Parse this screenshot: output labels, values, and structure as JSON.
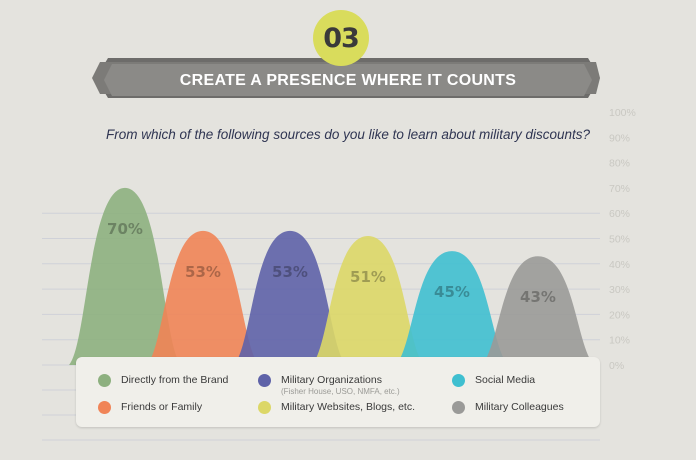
{
  "badge": {
    "text": "03"
  },
  "banner": {
    "title": "CREATE A PRESENCE WHERE IT COUNTS"
  },
  "question": "From which of the following sources do you like to learn about military discounts?",
  "chart_data": {
    "type": "area",
    "title": "From which of the following sources do you like to learn about military discounts?",
    "ylim": [
      0,
      100
    ],
    "y_ticks": [
      "0%",
      "10%",
      "20%",
      "30%",
      "40%",
      "50%",
      "60%",
      "70%",
      "80%",
      "90%",
      "100%"
    ],
    "grid": true,
    "legend_position": "bottom",
    "categories": [
      "Directly from the Brand",
      "Friends or Family",
      "Military Organizations",
      "Military Websites, Blogs, etc.",
      "Social Media",
      "Military Colleagues"
    ],
    "values": [
      70,
      53,
      53,
      51,
      45,
      43
    ],
    "data_labels": [
      "70%",
      "53%",
      "53%",
      "51%",
      "45%",
      "43%"
    ],
    "colors": [
      "#8db07f",
      "#f08457",
      "#5e62a8",
      "#dcd767",
      "#3fbfd0",
      "#9a9a98"
    ]
  },
  "legend": {
    "items": [
      {
        "label": "Directly from the Brand",
        "sub": "",
        "color": "#8db07f"
      },
      {
        "label": "Friends or Family",
        "sub": "",
        "color": "#f08457"
      },
      {
        "label": "Military Organizations",
        "sub": "(Fisher House, USO, NMFA, etc.)",
        "color": "#5e62a8"
      },
      {
        "label": "Military Websites, Blogs, etc.",
        "sub": "",
        "color": "#dcd767"
      },
      {
        "label": "Social Media",
        "sub": "",
        "color": "#3fbfd0"
      },
      {
        "label": "Military Colleagues",
        "sub": "",
        "color": "#9a9a98"
      }
    ]
  }
}
